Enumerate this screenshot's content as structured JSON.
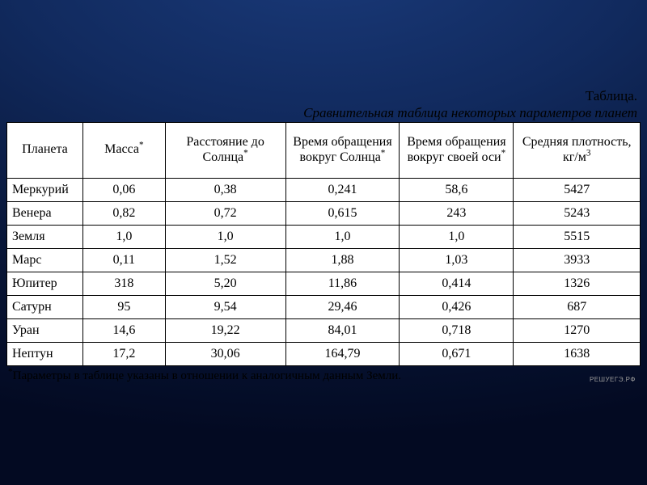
{
  "colors": {
    "page_bg_gradient": [
      "#1a3a7a",
      "#112a5e",
      "#081638",
      "#030a22"
    ],
    "table_bg": "#ffffff",
    "border": "#000000",
    "text": "#000000",
    "watermark": "#9a9a9a"
  },
  "typography": {
    "font_family": "Times New Roman",
    "heading_fontsize_pt": 13,
    "cell_fontsize_pt": 12,
    "footnote_fontsize_pt": 11
  },
  "heading": {
    "label": "Таблица.",
    "caption": "Сравнительная таблица некоторых параметров планет"
  },
  "table": {
    "type": "table",
    "column_widths_pct": [
      12,
      13,
      19,
      18,
      18,
      20
    ],
    "columns": [
      {
        "text": "Планета",
        "sup": ""
      },
      {
        "text": "Масса",
        "sup": "*"
      },
      {
        "text": "Расстояние до Солнца",
        "sup": "*"
      },
      {
        "text": "Время обращения вокруг Солнца",
        "sup": "*"
      },
      {
        "text": "Время обращения вокруг своей оси",
        "sup": "*"
      },
      {
        "text": "Средняя плотность, кг/м",
        "sup": "3"
      }
    ],
    "rows": [
      [
        "Меркурий",
        "0,06",
        "0,38",
        "0,241",
        "58,6",
        "5427"
      ],
      [
        "Венера",
        "0,82",
        "0,72",
        "0,615",
        "243",
        "5243"
      ],
      [
        "Земля",
        "1,0",
        "1,0",
        "1,0",
        "1,0",
        "5515"
      ],
      [
        "Марс",
        "0,11",
        "1,52",
        "1,88",
        "1,03",
        "3933"
      ],
      [
        "Юпитер",
        "318",
        "5,20",
        "11,86",
        "0,414",
        "1326"
      ],
      [
        "Сатурн",
        "95",
        "9,54",
        "29,46",
        "0,426",
        "687"
      ],
      [
        "Уран",
        "14,6",
        "19,22",
        "84,01",
        "0,718",
        "1270"
      ],
      [
        "Нептун",
        "17,2",
        "30,06",
        "164,79",
        "0,671",
        "1638"
      ]
    ]
  },
  "footnote": {
    "marker": "*",
    "text": "Параметры в таблице указаны в отношении к аналогичным данным Земли."
  },
  "watermark": "РЕШУЕГЭ.РФ"
}
